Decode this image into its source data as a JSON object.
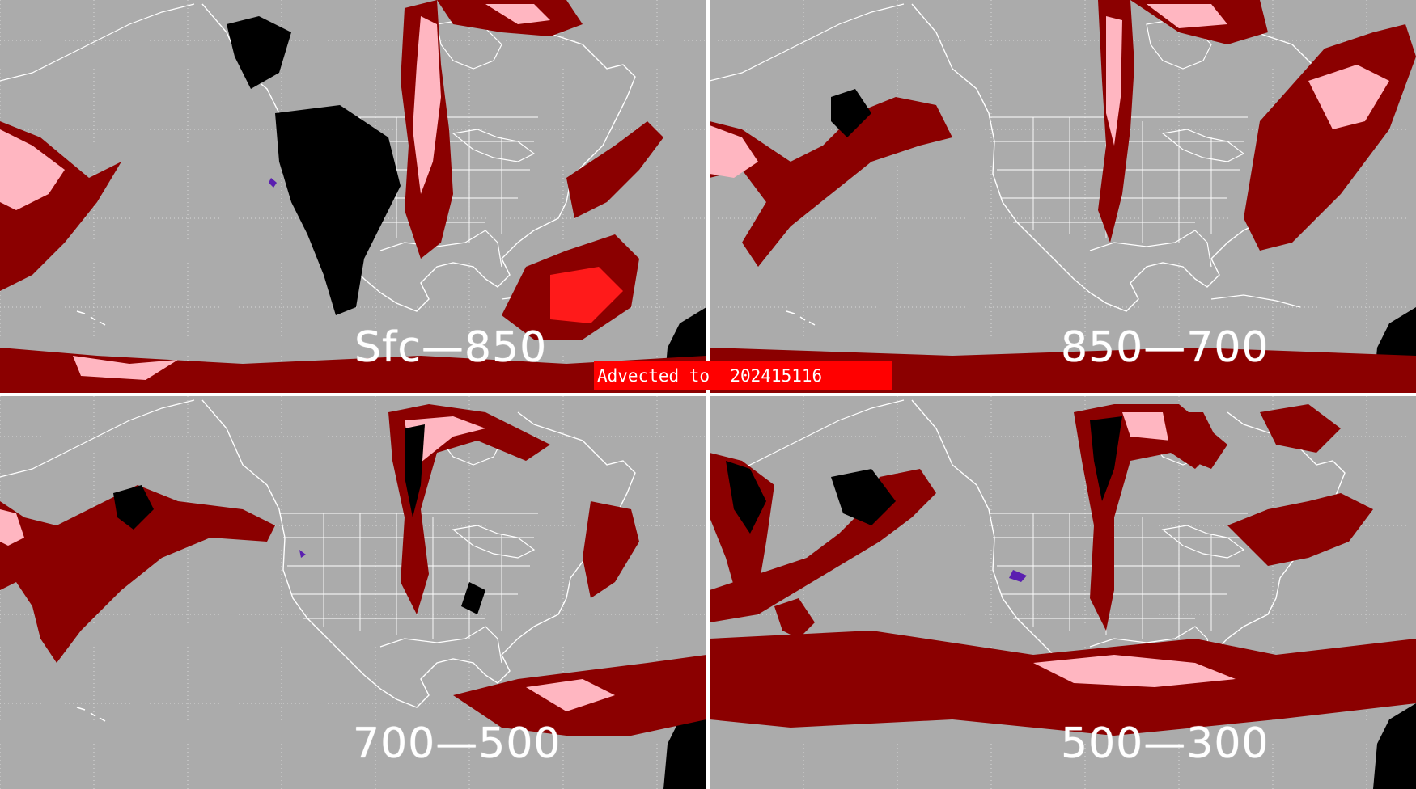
{
  "colors": {
    "background": "#ababab",
    "divider": "#ffffff",
    "coastline": "#ffffff",
    "dark_red": "#8b0000",
    "pink": "#ffb6c1",
    "bright_red": "#ff1a1a",
    "black": "#000000",
    "purple": "#5a1fb0",
    "banner": "#ff0000"
  },
  "panels": [
    {
      "label": "Sfc—850"
    },
    {
      "label": "850—700"
    },
    {
      "label": "700—500"
    },
    {
      "label": "500—300"
    }
  ],
  "banner": {
    "text": "Advected to  202415116"
  }
}
